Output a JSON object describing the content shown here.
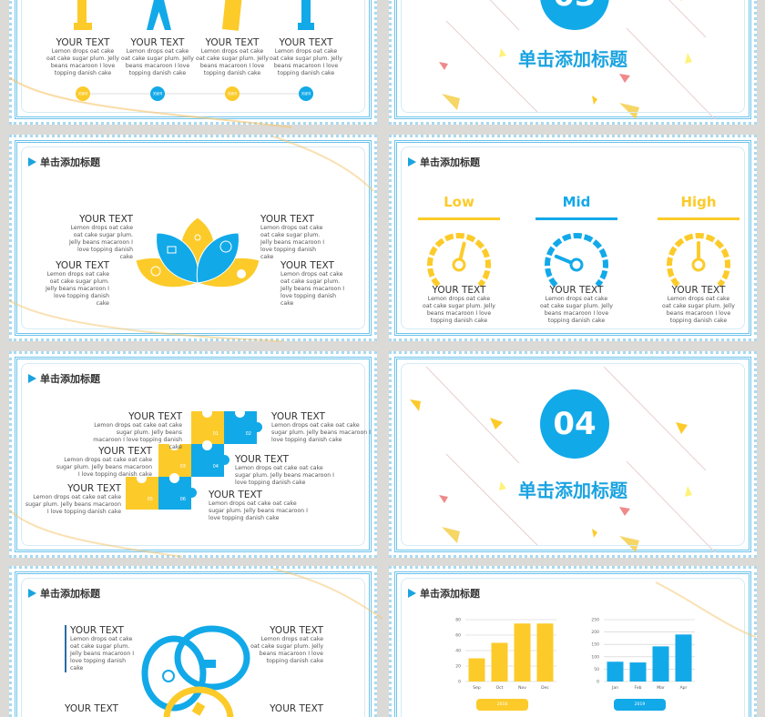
{
  "colors": {
    "yellow": "#fccb2a",
    "blue": "#12a9e9",
    "background": "#dcdad7"
  },
  "common": {
    "slide_heading": "单击添加标题",
    "your_text": "YOUR TEXT",
    "body": "Lemon drops oat cake oat cake sugar plum. Jelly beans macaroon I love topping danish cake"
  },
  "slide_landmarks": {
    "icons": [
      "statue-of-liberty-icon",
      "eiffel-tower-icon",
      "leaning-tower-of-pisa-icon",
      "big-ben-icon"
    ],
    "items": [
      {
        "title": "YOUR TEXT"
      },
      {
        "title": "YOUR TEXT"
      },
      {
        "title": "YOUR TEXT"
      },
      {
        "title": "YOUR TEXT"
      }
    ],
    "timeline_dots": [
      "关键词",
      "关键词",
      "关键词",
      "关键词"
    ]
  },
  "section_03": {
    "number": "03",
    "title": "单击添加标题"
  },
  "section_04": {
    "number": "04",
    "title": "单击添加标题"
  },
  "slide_lotus": {
    "heading": "单击添加标题",
    "icons": [
      "devices-icon",
      "gamepad-icon",
      "dollar-coin-icon",
      "money-bag-icon",
      "clock-icon"
    ]
  },
  "slide_gauges": {
    "heading": "单击添加标题",
    "levels": [
      {
        "label": "Low",
        "color": "#fccb2a",
        "value": 0.55
      },
      {
        "label": "Mid",
        "color": "#12a9e9",
        "value": 0.25
      },
      {
        "label": "High",
        "color": "#fccb2a",
        "value": 0.5
      }
    ]
  },
  "slide_puzzle": {
    "heading": "单击添加标题",
    "pieces": [
      "01",
      "02",
      "03",
      "04",
      "05",
      "06"
    ]
  },
  "slide_rings": {
    "heading": "单击添加标题",
    "icons": [
      "money-stack-icon",
      "chat-bubble-icon",
      "tag-icon"
    ]
  },
  "slide_charts": {
    "heading": "单击添加标题"
  },
  "chart_data": [
    {
      "type": "bar",
      "categories": [
        "Sep",
        "Oct",
        "Nov",
        "Dec"
      ],
      "values": [
        30,
        50,
        75,
        75
      ],
      "ylim": [
        0,
        80
      ],
      "yticks": [
        0,
        20,
        40,
        60,
        80
      ],
      "legend": "2018",
      "color": "#fccb2a",
      "grid": true,
      "legend_position": "bottom"
    },
    {
      "type": "bar",
      "categories": [
        "Jan",
        "Feb",
        "Mar",
        "Apr"
      ],
      "values": [
        80,
        77,
        142,
        190
      ],
      "ylim": [
        0,
        250
      ],
      "yticks": [
        0,
        50,
        100,
        150,
        200,
        250
      ],
      "legend": "2019",
      "color": "#12a9e9",
      "grid": true,
      "legend_position": "bottom"
    }
  ]
}
